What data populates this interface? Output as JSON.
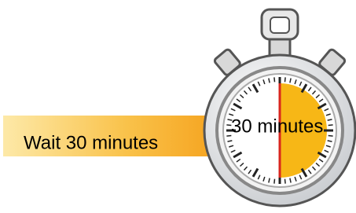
{
  "label": "Wait 30 minutes",
  "dial_label": "30 minutes"
}
